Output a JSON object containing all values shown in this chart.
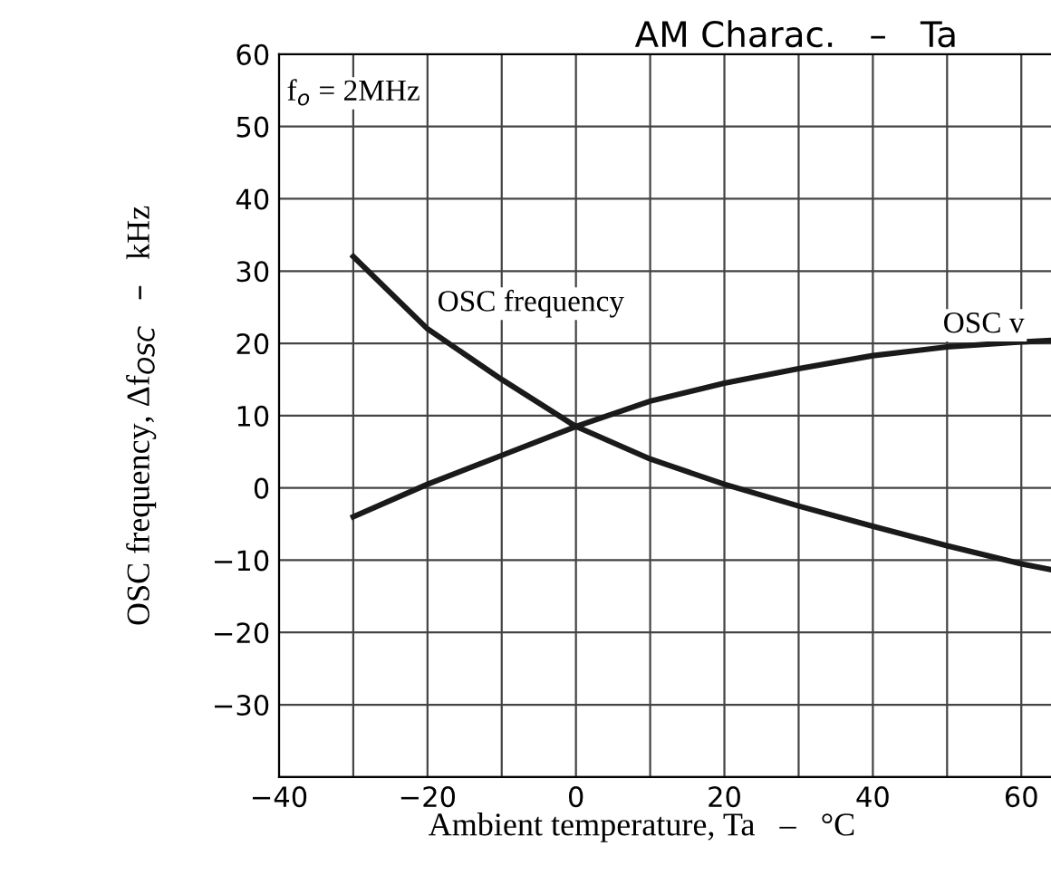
{
  "chart_data": {
    "type": "line",
    "title": "AM Charac.   –   Ta",
    "xlabel": "Ambient temperature, Ta   –   °C",
    "ylabel": "OSC frequency, Δf$_{OSC}$   –   kHz",
    "x": [
      -30,
      -20,
      -10,
      0,
      10,
      20,
      30,
      40,
      50,
      60,
      64
    ],
    "series": [
      {
        "name": "OSC frequency",
        "color": "#1a1a1a",
        "values": [
          32,
          22,
          15,
          8.5,
          4,
          0.5,
          -2.5,
          -5.3,
          -8,
          -10.5,
          -11.3
        ]
      },
      {
        "name": "OSC v",
        "color": "#1a1a1a",
        "values": [
          -4,
          0.5,
          4.5,
          8.5,
          12,
          14.5,
          16.5,
          18.3,
          19.5,
          20.2,
          20.4
        ]
      }
    ],
    "annotations": [
      "f$_{o}$ = 2MHz"
    ],
    "xlim": [
      -40,
      64
    ],
    "xticks": [
      -40,
      -20,
      0,
      20,
      40,
      60
    ],
    "ylim": [
      -40,
      60
    ],
    "yticks": [
      {
        "value": -40,
        "label": null
      },
      -30,
      -20,
      -10,
      0,
      10,
      20,
      30,
      40,
      50,
      60
    ],
    "grid": true,
    "legend": false,
    "marker": "none",
    "line_style": "solid"
  }
}
